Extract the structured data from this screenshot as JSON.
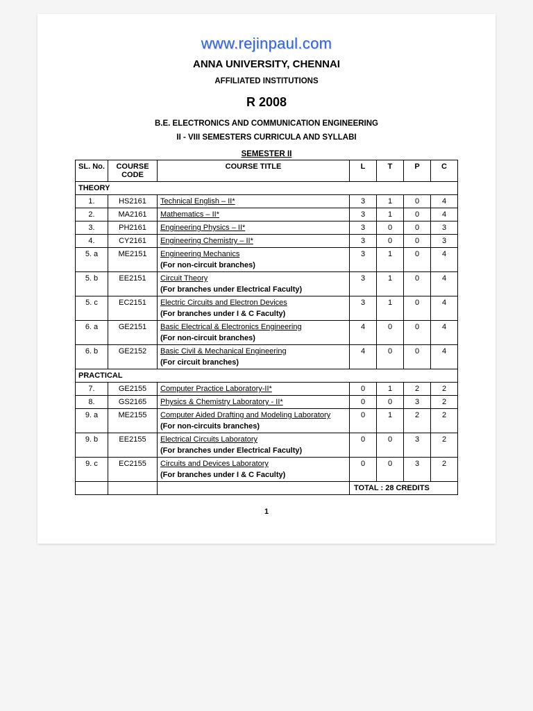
{
  "watermark": "www.rejinpaul.com",
  "university": "ANNA UNIVERSITY, CHENNAI",
  "affiliated": "AFFILIATED INSTITUTIONS",
  "regulation": "R 2008",
  "degree": "B.E. ELECTRONICS AND COMMUNICATION ENGINEERING",
  "subtitle": "II - VIII SEMESTERS CURRICULA AND SYLLABI",
  "semester": "SEMESTER II",
  "headers": {
    "sl": "SL. No.",
    "code": "COURSE CODE",
    "title": "COURSE TITLE",
    "L": "L",
    "T": "T",
    "P": "P",
    "C": "C"
  },
  "section_theory": "THEORY",
  "section_practical": "PRACTICAL",
  "rows": [
    {
      "sl": "1.",
      "code": "HS2161",
      "title": "Technical English – II*",
      "note": "",
      "L": "3",
      "T": "1",
      "P": "0",
      "C": "4"
    },
    {
      "sl": "2.",
      "code": "MA2161",
      "title": "Mathematics – II*",
      "note": "",
      "L": "3",
      "T": "1",
      "P": "0",
      "C": "4"
    },
    {
      "sl": "3.",
      "code": "PH2161",
      "title": "Engineering Physics – II*",
      "note": "",
      "L": "3",
      "T": "0",
      "P": "0",
      "C": "3"
    },
    {
      "sl": "4.",
      "code": "CY2161",
      "title": "Engineering Chemistry – II*",
      "note": "",
      "L": "3",
      "T": "0",
      "P": "0",
      "C": "3"
    },
    {
      "sl": "5. a",
      "code": "ME2151",
      "title": "Engineering Mechanics",
      "note": "(For non-circuit branches)",
      "L": "3",
      "T": "1",
      "P": "0",
      "C": "4"
    },
    {
      "sl": "5. b",
      "code": "EE2151",
      "title": "Circuit Theory",
      "note": "(For branches under Electrical Faculty)",
      "L": "3",
      "T": "1",
      "P": "0",
      "C": "4"
    },
    {
      "sl": "5. c",
      "code": "EC2151",
      "title": "Electric Circuits and Electron Devices",
      "note": "(For branches under I & C Faculty)",
      "L": "3",
      "T": "1",
      "P": "0",
      "C": "4"
    },
    {
      "sl": "6. a",
      "code": "GE2151",
      "title": "Basic Electrical & Electronics Engineering",
      "note": "(For non-circuit branches)",
      "L": "4",
      "T": "0",
      "P": "0",
      "C": "4"
    },
    {
      "sl": "6. b",
      "code": "GE2152",
      "title": "Basic Civil & Mechanical Engineering",
      "note": "(For circuit branches)",
      "L": "4",
      "T": "0",
      "P": "0",
      "C": "4"
    }
  ],
  "rows_practical": [
    {
      "sl": "7.",
      "code": "GE2155",
      "title": "Computer Practice Laboratory-II*",
      "note": "",
      "L": "0",
      "T": "1",
      "P": "2",
      "C": "2"
    },
    {
      "sl": "8.",
      "code": "GS2165",
      "title": "Physics & Chemistry Laboratory - II*",
      "note": "",
      "L": "0",
      "T": "0",
      "P": "3",
      "C": "2"
    },
    {
      "sl": "9. a",
      "code": "ME2155",
      "title": "Computer Aided Drafting and Modeling Laboratory",
      "note": "(For non-circuits branches)",
      "L": "0",
      "T": "1",
      "P": "2",
      "C": "2"
    },
    {
      "sl": "9. b",
      "code": "EE2155",
      "title": "Electrical Circuits Laboratory",
      "note": "(For branches under Electrical Faculty)",
      "L": "0",
      "T": "0",
      "P": "3",
      "C": "2"
    },
    {
      "sl": "9. c",
      "code": "EC2155",
      "title": "Circuits and Devices Laboratory",
      "note": "(For branches under I & C Faculty)",
      "L": "0",
      "T": "0",
      "P": "3",
      "C": "2"
    }
  ],
  "total_label": "TOTAL : 28 CREDITS",
  "page_number": "1",
  "colors": {
    "watermark": "#3366cc",
    "text": "#000000",
    "page_bg": "#ffffff",
    "outer_bg": "#f5f5f5"
  }
}
